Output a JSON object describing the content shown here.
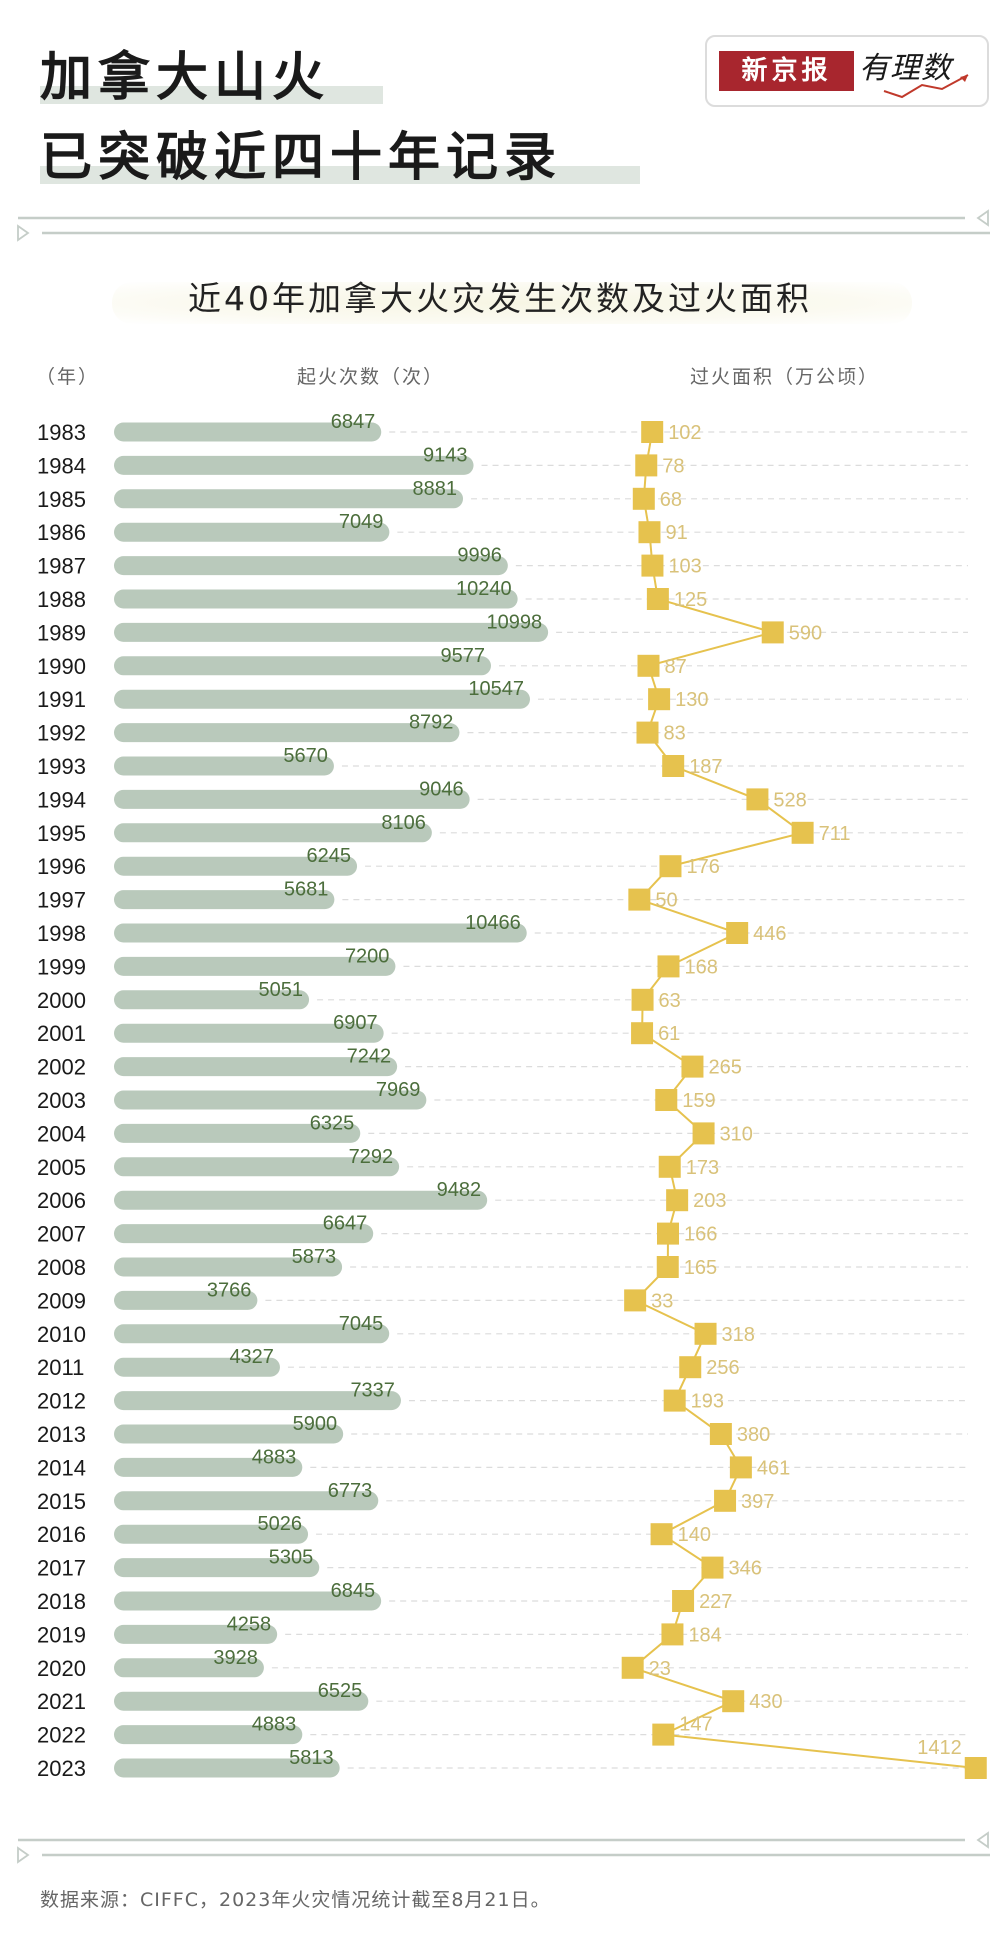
{
  "header": {
    "title_line1": "加拿大山火",
    "title_line2": "已突破近四十年记录",
    "logo_brand": "新京报",
    "logo_column": "有理数"
  },
  "colors": {
    "bar": "#b9c9bb",
    "count_text": "#4c6e3c",
    "area_marker": "#e6c24e",
    "area_text": "#d9c27a",
    "logo_red": "#a8262e"
  },
  "chart_data": {
    "type": "bar",
    "title": "近40年加拿大火灾发生次数及过火面积",
    "year_header": "（年）",
    "series": [
      {
        "name": "起火次数（次）",
        "type": "bar",
        "values": [
          6847,
          9143,
          8881,
          7049,
          9996,
          10240,
          10998,
          9577,
          10547,
          8792,
          5670,
          9046,
          8106,
          6245,
          5681,
          10466,
          7200,
          5051,
          6907,
          7242,
          7969,
          6325,
          7292,
          9482,
          6647,
          5873,
          3766,
          7045,
          4327,
          7337,
          5900,
          4883,
          6773,
          5026,
          5305,
          6845,
          4258,
          3928,
          6525,
          4883,
          5813
        ]
      },
      {
        "name": "过火面积（万公顷）",
        "type": "line",
        "values": [
          102,
          78,
          68,
          91,
          103,
          125,
          590,
          87,
          130,
          83,
          187,
          528,
          711,
          176,
          50,
          446,
          168,
          63,
          61,
          265,
          159,
          310,
          173,
          203,
          166,
          165,
          33,
          318,
          256,
          193,
          380,
          461,
          397,
          140,
          346,
          227,
          184,
          23,
          430,
          147,
          1412
        ]
      }
    ],
    "categories": [
      "1983",
      "1984",
      "1985",
      "1986",
      "1987",
      "1988",
      "1989",
      "1990",
      "1991",
      "1992",
      "1993",
      "1994",
      "1995",
      "1996",
      "1997",
      "1998",
      "1999",
      "2000",
      "2001",
      "2002",
      "2003",
      "2004",
      "2005",
      "2006",
      "2007",
      "2008",
      "2009",
      "2010",
      "2011",
      "2012",
      "2013",
      "2014",
      "2015",
      "2016",
      "2017",
      "2018",
      "2019",
      "2020",
      "2021",
      "2022",
      "2023"
    ],
    "orientation": "horizontal",
    "grid": "dashed row guides",
    "legend": "column headers at top"
  },
  "footer": {
    "source": "数据来源：CIFFC，2023年火灾情况统计截至8月21日。"
  }
}
